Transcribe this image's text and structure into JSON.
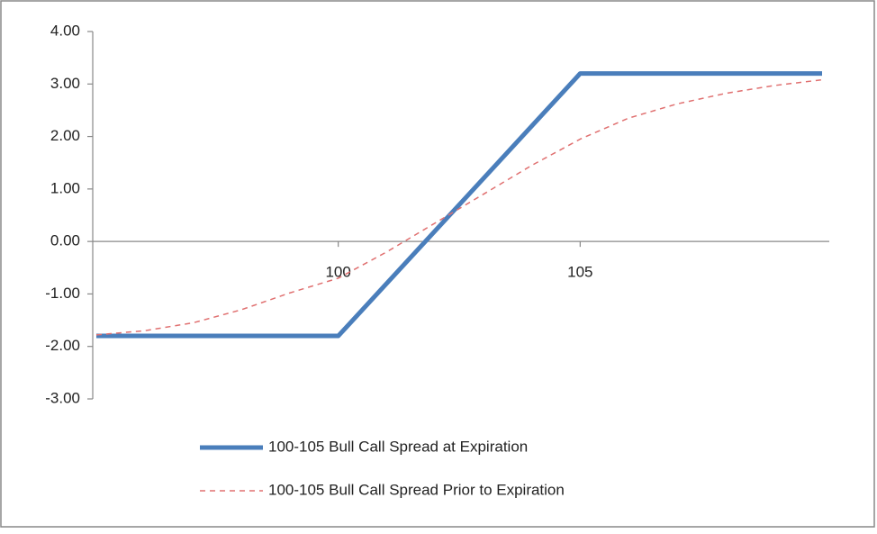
{
  "chart_data": {
    "type": "line",
    "ylim": [
      -3,
      4
    ],
    "yticks": [
      {
        "value": 4,
        "label": "4.00"
      },
      {
        "value": 3,
        "label": "3.00"
      },
      {
        "value": 2,
        "label": "2.00"
      },
      {
        "value": 1,
        "label": "1.00"
      },
      {
        "value": 0,
        "label": "0.00"
      },
      {
        "value": -1,
        "label": "-1.00"
      },
      {
        "value": -2,
        "label": "-2.00"
      },
      {
        "value": -3,
        "label": "-3.00"
      }
    ],
    "xlim": [
      95,
      110
    ],
    "xticks": [
      100,
      105
    ],
    "grid": false,
    "legend": "bottom",
    "series": [
      {
        "name": "100-105 Bull Call Spread at Expiration",
        "color": "#4a7ebb",
        "line_style": "solid",
        "x": [
          95,
          100,
          105,
          110
        ],
        "values": [
          -1.8,
          -1.8,
          3.2,
          3.2
        ]
      },
      {
        "name": "100-105 Bull Call Spread Prior to Expiration",
        "color": "#e07070",
        "line_style": "dashed",
        "x": [
          95,
          96,
          97,
          98,
          99,
          100,
          101,
          102,
          103,
          104,
          105,
          106,
          107,
          108,
          109,
          110
        ],
        "values": [
          -1.78,
          -1.7,
          -1.55,
          -1.3,
          -0.98,
          -0.7,
          -0.2,
          0.35,
          0.9,
          1.45,
          1.95,
          2.35,
          2.62,
          2.82,
          2.97,
          3.08
        ]
      }
    ]
  }
}
